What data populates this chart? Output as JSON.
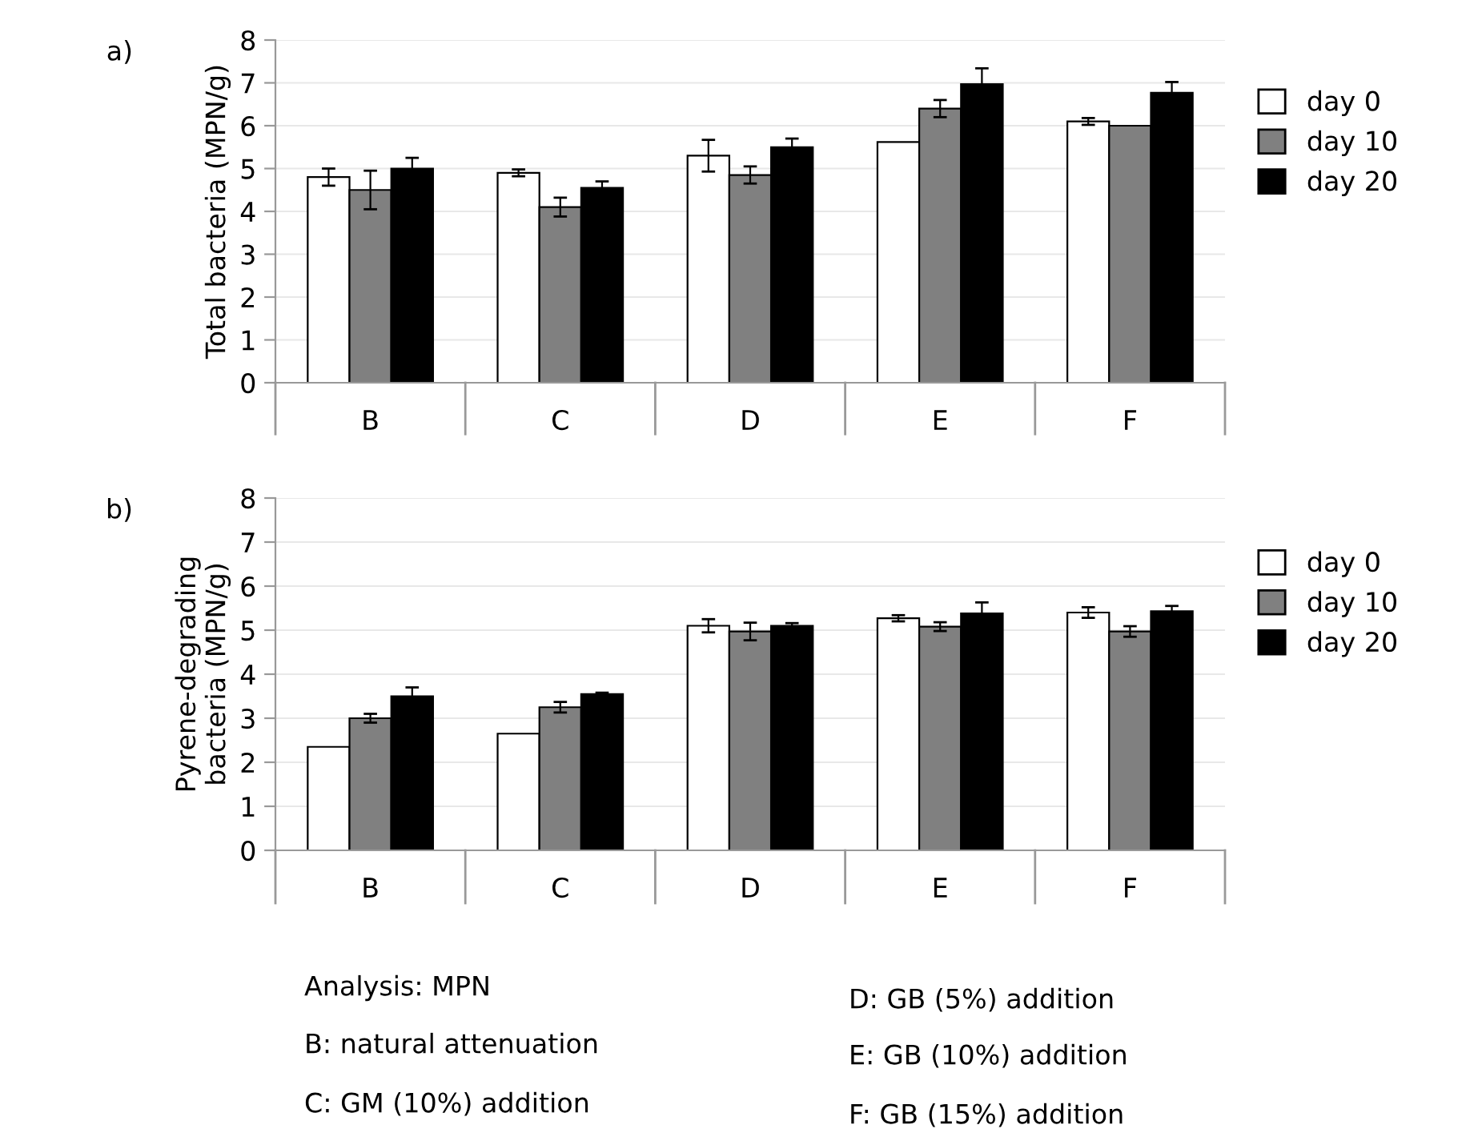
{
  "chart_data": [
    {
      "type": "bar",
      "title": "a)",
      "ylabel": "Total bacteria (MPN/g)",
      "categories": [
        "B",
        "C",
        "D",
        "E",
        "F"
      ],
      "ylim": [
        0,
        8
      ],
      "yticks": [
        0,
        1,
        2,
        3,
        4,
        5,
        6,
        7,
        8
      ],
      "grid": "y",
      "legend": "right",
      "series": [
        {
          "name": "day 0",
          "color": "#ffffff",
          "values": [
            4.8,
            4.9,
            5.3,
            5.62,
            6.1
          ],
          "errors": [
            0.2,
            0.08,
            0.37,
            null,
            0.08
          ]
        },
        {
          "name": "day 10",
          "color": "#808080",
          "values": [
            4.5,
            4.1,
            4.85,
            6.4,
            6.0
          ],
          "errors": [
            0.45,
            0.22,
            0.2,
            0.2,
            null
          ]
        },
        {
          "name": "day 20",
          "color": "#000000",
          "values": [
            5.0,
            4.55,
            5.5,
            6.97,
            6.77
          ],
          "errors": [
            0.25,
            0.15,
            0.2,
            0.37,
            0.25
          ]
        }
      ]
    },
    {
      "type": "bar",
      "title": "b)",
      "ylabel": "Pyrene-degrading\nbacteria (MPN/g)",
      "categories": [
        "B",
        "C",
        "D",
        "E",
        "F"
      ],
      "ylim": [
        0,
        8
      ],
      "yticks": [
        0,
        1,
        2,
        3,
        4,
        5,
        6,
        7,
        8
      ],
      "grid": "y",
      "legend": "right",
      "series": [
        {
          "name": "day 0",
          "color": "#ffffff",
          "values": [
            2.35,
            2.65,
            5.1,
            5.27,
            5.4
          ],
          "errors": [
            null,
            null,
            0.15,
            0.07,
            0.12
          ]
        },
        {
          "name": "day 10",
          "color": "#808080",
          "values": [
            3.0,
            3.25,
            4.97,
            5.08,
            4.97
          ],
          "errors": [
            0.1,
            0.12,
            0.2,
            0.1,
            0.12
          ]
        },
        {
          "name": "day 20",
          "color": "#000000",
          "values": [
            3.5,
            3.55,
            5.1,
            5.38,
            5.43
          ],
          "errors": [
            0.2,
            0.03,
            0.06,
            0.25,
            0.12
          ]
        }
      ],
      "annotations": [
        "Analysis: MPN",
        "B: natural attenuation",
        "C: GM (10%) addition",
        "D: GB (5%) addition",
        "E: GB (10%) addition",
        "F: GB (15%) addition"
      ]
    }
  ]
}
